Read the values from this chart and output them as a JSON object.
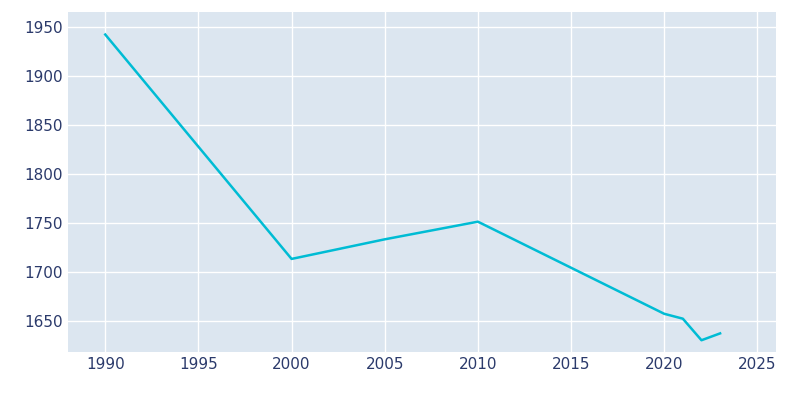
{
  "years": [
    1990,
    2000,
    2005,
    2010,
    2020,
    2021,
    2022,
    2023
  ],
  "population": [
    1942,
    1713,
    1733,
    1751,
    1657,
    1652,
    1630,
    1637
  ],
  "line_color": "#00bcd4",
  "background_color": "#ffffff",
  "axes_facecolor": "#dce6f0",
  "grid_color": "#ffffff",
  "tick_color": "#2b3a6b",
  "xlim": [
    1988,
    2026
  ],
  "ylim": [
    1618,
    1965
  ],
  "xticks": [
    1990,
    1995,
    2000,
    2005,
    2010,
    2015,
    2020,
    2025
  ],
  "yticks": [
    1650,
    1700,
    1750,
    1800,
    1850,
    1900,
    1950
  ],
  "line_width": 1.8,
  "figsize": [
    8.0,
    4.0
  ],
  "dpi": 100
}
